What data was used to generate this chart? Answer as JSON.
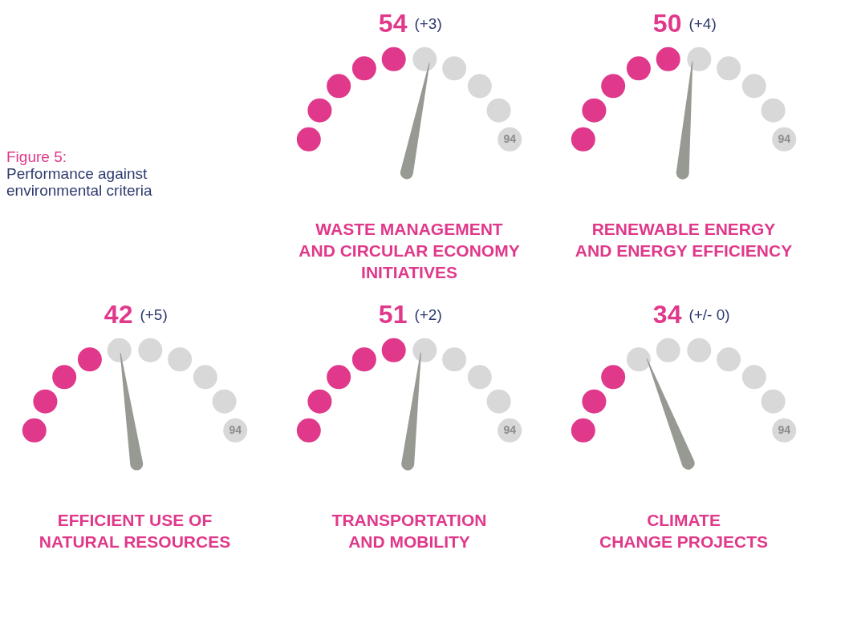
{
  "chart_data": [
    {
      "type": "other",
      "title": "Figure 5:",
      "subtitle": "Performance against\nenvironmental criteria"
    },
    {
      "type": "other",
      "title": "WASTE MANAGEMENT\nAND CIRCULAR ECONOMY\nINITIATIVES",
      "values": [
        54
      ],
      "data_labels": true,
      "annotations": [
        "(+3)",
        "94"
      ],
      "colors": [
        "#e0388a"
      ]
    },
    {
      "type": "other",
      "title": "RENEWABLE ENERGY\nAND ENERGY EFFICIENCY",
      "values": [
        50
      ],
      "data_labels": true,
      "annotations": [
        "(+4)",
        "94"
      ],
      "colors": [
        "#e0388a"
      ]
    },
    {
      "type": "other",
      "title": "EFFICIENT USE OF\nNATURAL RESOURCES",
      "values": [
        42
      ],
      "data_labels": true,
      "annotations": [
        "(+5)",
        "94"
      ],
      "colors": [
        "#e0388a"
      ]
    },
    {
      "type": "other",
      "title": "TRANSPORTATION\nAND MOBILITY",
      "values": [
        51
      ],
      "data_labels": true,
      "annotations": [
        "(+2)",
        "94"
      ],
      "colors": [
        "#e0388a"
      ]
    },
    {
      "type": "other",
      "title": "CLIMATE\nCHANGE PROJECTS",
      "values": [
        34
      ],
      "data_labels": true,
      "annotations": [
        "(+/- 0)",
        "94"
      ],
      "colors": [
        "#e0388a"
      ]
    }
  ]
}
